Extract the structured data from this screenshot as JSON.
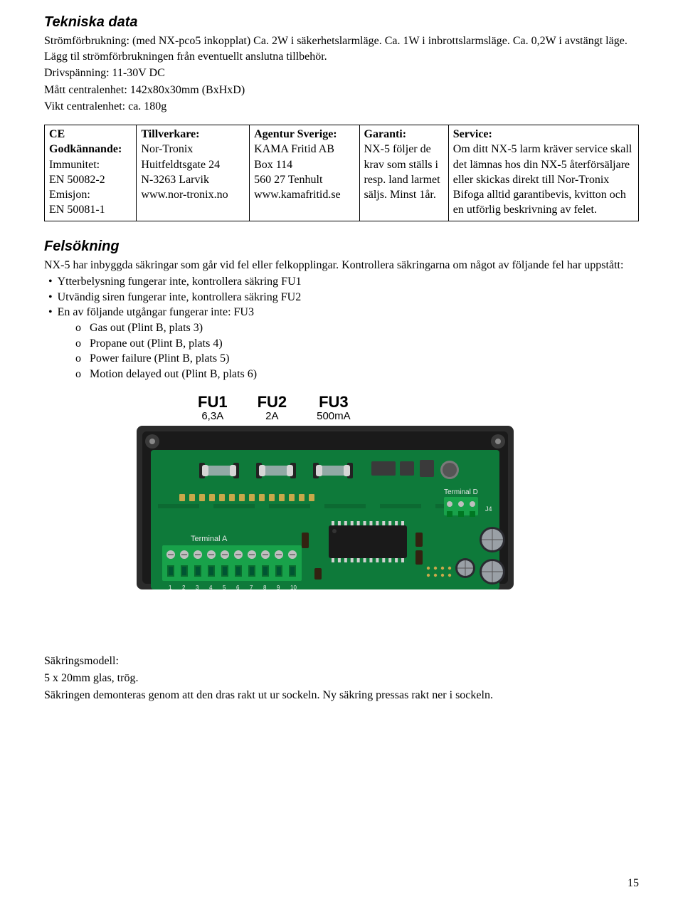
{
  "section1": {
    "heading": "Tekniska data",
    "para": "Strömförbrukning: (med NX-pco5 inkopplat) Ca. 2W i säkerhetslarmläge. Ca. 1W i inbrottslarmsläge. Ca. 0,2W i avstängt läge. Lägg til strömförbrukningen från eventuellt anslutna tillbehör.",
    "line2": "Drivspänning: 11-30V DC",
    "line3": "Mått centralenhet: 142x80x30mm (BxHxD)",
    "line4": "Vikt centralenhet: ca. 180g"
  },
  "table": {
    "c0": {
      "h": "CE Godkännande:",
      "l1": "Immunitet:",
      "l2": "EN 50082-2",
      "l3": "Emisjon:",
      "l4": "EN 50081-1"
    },
    "c1": {
      "h": "Tillverkare:",
      "l1": "Nor-Tronix",
      "l2": "Huitfeldtsgate 24",
      "l3": "N-3263 Larvik",
      "l4": "www.nor-tronix.no"
    },
    "c2": {
      "h": "Agentur Sverige:",
      "l1": "KAMA Fritid AB",
      "l2": "Box 114",
      "l3": "560 27 Tenhult",
      "l4": "www.kamafritid.se"
    },
    "c3": {
      "h": "Garanti:",
      "body": "NX-5 följer de krav som ställs i resp. land larmet säljs. Minst 1år."
    },
    "c4": {
      "h": "Service:",
      "body": "Om ditt NX-5 larm kräver service skall det lämnas hos din NX-5 återförsäljare eller skickas direkt till Nor-Tronix",
      "body2": "Bifoga alltid garantibevis, kvitton och en utförlig beskrivning av felet."
    },
    "widths": [
      "15.5%",
      "19%",
      "18.5%",
      "15%",
      "32%"
    ]
  },
  "section2": {
    "heading": "Felsökning",
    "para": "NX-5 har inbyggda säkringar som går vid fel eller felkopplingar. Kontrollera säkringarna om något av följande fel har uppstått:",
    "bullets": [
      "Ytterbelysning fungerar inte, kontrollera säkring FU1",
      "Utvändig siren fungerar inte, kontrollera säkring FU2",
      "En av följande utgångar fungerar inte: FU3"
    ],
    "sub": [
      "Gas out (Plint B, plats 3)",
      "Propane out (Plint B, plats 4)",
      "Power failure (Plint B, plats 5)",
      "Motion delayed out (Plint B, plats 6)"
    ]
  },
  "figure": {
    "labels": [
      {
        "fu": "FU1",
        "amp": "6,3A"
      },
      {
        "fu": "FU2",
        "amp": "2A"
      },
      {
        "fu": "FU3",
        "amp": "500mA"
      }
    ],
    "colors": {
      "case": "#2b2b2b",
      "case_inner": "#1a1a1a",
      "board": "#0e7a3a",
      "board_dark": "#0a5a2a",
      "silk": "#e8e8e8",
      "gold": "#c9a84a",
      "terminal_green": "#18a24a",
      "terminal_screw": "#bfbfbf",
      "cap_top": "#9aa0a6",
      "cap_dark": "#2a2a30",
      "chip": "#1a1a1a",
      "chip_pin": "#d0d0d0",
      "glass_fuse": "#a8b2b8",
      "mic": "#7a7a7a",
      "small_comp": "#3a3a3a"
    },
    "terminalA_count": 10,
    "terminalD_count": 3,
    "chip_pins_per_side": 12
  },
  "bottom": {
    "l1": "Säkringsmodell:",
    "l2": "5 x 20mm glas, trög.",
    "l3": "Säkringen demonteras genom att den dras rakt ut ur sockeln. Ny säkring pressas rakt ner i sockeln."
  },
  "page_number": "15"
}
